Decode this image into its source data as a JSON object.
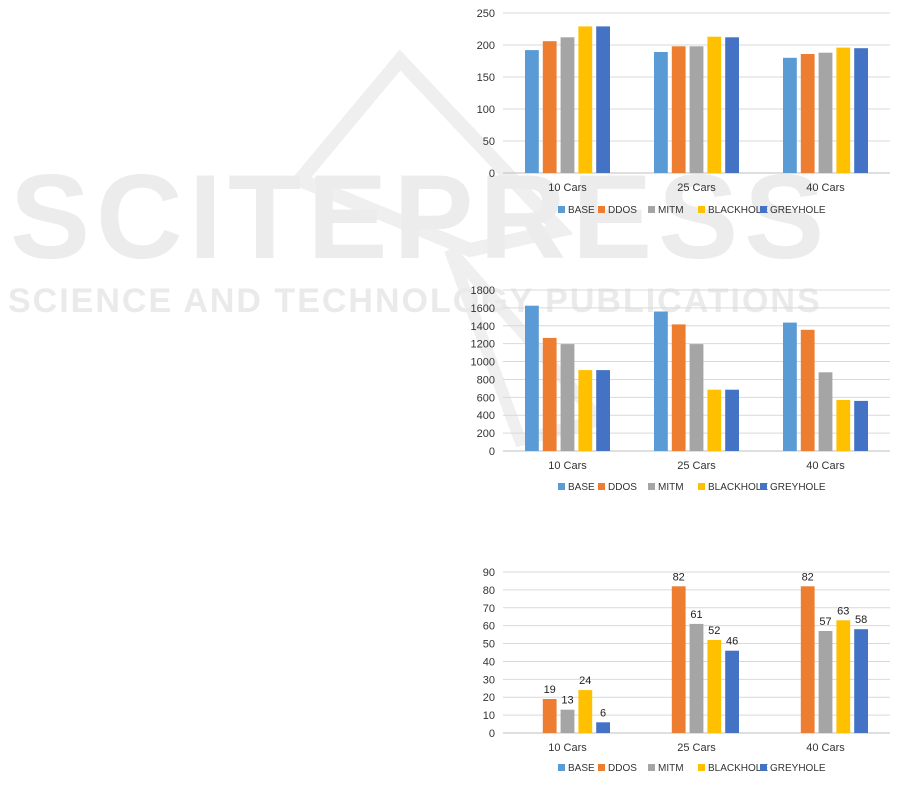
{
  "watermark": {
    "title": "SCITEPRESS",
    "subtitle": "SCIENCE AND TECHNOLOGY PUBLICATIONS"
  },
  "legend_labels": [
    "BASE",
    "DDOS",
    "MITM",
    "BLACKHOLE",
    "GREYHOLE"
  ],
  "colors": {
    "BASE": "#5b9bd5",
    "DDOS": "#ed7d31",
    "MITM": "#a5a5a5",
    "BLACKHOLE": "#ffc000",
    "GREYHOLE": "#4472c4"
  },
  "chart_data": [
    {
      "type": "bar",
      "title": "",
      "categories": [
        "10 Cars",
        "25 Cars",
        "40 Cars"
      ],
      "ylim": [
        0,
        250
      ],
      "yticks": [
        "0",
        "50",
        "100",
        "150",
        "200",
        "250"
      ],
      "grid": true,
      "legend_position": "bottom",
      "series": [
        {
          "name": "BASE",
          "values": [
            192,
            189,
            180
          ]
        },
        {
          "name": "DDOS",
          "values": [
            206,
            198,
            186
          ]
        },
        {
          "name": "MITM",
          "values": [
            212,
            198,
            188
          ]
        },
        {
          "name": "BLACKHOLE",
          "values": [
            229,
            213,
            196
          ]
        },
        {
          "name": "GREYHOLE",
          "values": [
            229,
            212,
            195
          ]
        }
      ]
    },
    {
      "type": "bar",
      "title": "",
      "categories": [
        "10 Cars",
        "25 Cars",
        "40 Cars"
      ],
      "ylim": [
        0,
        1800
      ],
      "yticks": [
        "0",
        "200",
        "400",
        "600",
        "800",
        "1000",
        "1200",
        "1400",
        "1600",
        "1800"
      ],
      "grid": true,
      "legend_position": "bottom",
      "series": [
        {
          "name": "BASE",
          "values": [
            1625,
            1560,
            1435
          ]
        },
        {
          "name": "DDOS",
          "values": [
            1265,
            1415,
            1355
          ]
        },
        {
          "name": "MITM",
          "values": [
            1195,
            1195,
            880
          ]
        },
        {
          "name": "BLACKHOLE",
          "values": [
            905,
            685,
            570
          ]
        },
        {
          "name": "GREYHOLE",
          "values": [
            905,
            685,
            560
          ]
        }
      ]
    },
    {
      "type": "bar",
      "title": "",
      "categories": [
        "10 Cars",
        "25 Cars",
        "40 Cars"
      ],
      "ylim": [
        0,
        90
      ],
      "yticks": [
        "0",
        "10",
        "20",
        "30",
        "40",
        "50",
        "60",
        "70",
        "80",
        "90"
      ],
      "grid": true,
      "legend_position": "bottom",
      "series": [
        {
          "name": "BASE",
          "values": [
            0,
            0,
            0
          ]
        },
        {
          "name": "DDOS",
          "values": [
            19,
            82,
            82
          ]
        },
        {
          "name": "MITM",
          "values": [
            13,
            61,
            57
          ]
        },
        {
          "name": "BLACKHOLE",
          "values": [
            24,
            52,
            63
          ]
        },
        {
          "name": "GREYHOLE",
          "values": [
            6,
            46,
            58
          ]
        }
      ],
      "data_labels": [
        [
          null,
          null,
          null
        ],
        [
          "19",
          "82",
          "82"
        ],
        [
          "13",
          "61",
          "57"
        ],
        [
          "24",
          "52",
          "63"
        ],
        [
          "6",
          "46",
          "58"
        ]
      ]
    }
  ]
}
